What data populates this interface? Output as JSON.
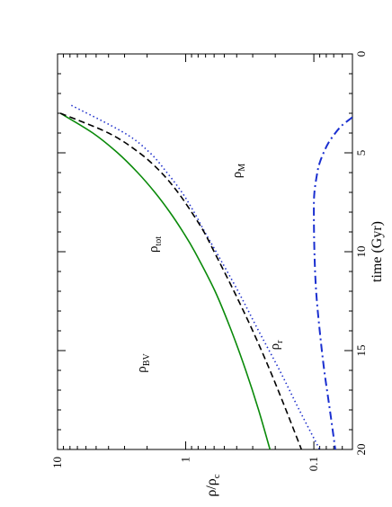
{
  "chart_data": {
    "type": "line",
    "orientation": "rotated-90-ccw",
    "xlabel": "time (Gyr)",
    "ylabel": "ρ/ρ",
    "ylabel_sub": "c",
    "xlim": [
      0,
      20
    ],
    "ylim": [
      0.05,
      10
    ],
    "yscale": "log",
    "grid": false,
    "x_ticks": [
      "0",
      "5",
      "10",
      "15",
      "20"
    ],
    "y_ticks": [
      "0.1",
      "1",
      "10"
    ],
    "series": [
      {
        "name": "ρtot",
        "label_main": "ρ",
        "label_sub": "tot",
        "color": "#0a8a0a",
        "dash": "solid",
        "x": [
          3.0,
          4,
          5,
          6,
          7,
          8,
          9,
          10,
          12,
          14,
          16,
          18,
          20
        ],
        "y": [
          9.5,
          5.3,
          3.4,
          2.37,
          1.74,
          1.33,
          1.05,
          0.85,
          0.59,
          0.44,
          0.34,
          0.27,
          0.22
        ]
      },
      {
        "name": "ρBV",
        "label_main": "ρ",
        "label_sub": "BV",
        "color": "#2233cc",
        "dash": "dotted",
        "x": [
          2.6,
          4,
          5,
          6,
          7,
          8,
          9,
          10,
          12,
          14,
          16,
          18,
          20
        ],
        "y": [
          7.8,
          3.0,
          1.9,
          1.4,
          1.07,
          0.86,
          0.71,
          0.58,
          0.39,
          0.27,
          0.185,
          0.13,
          0.09
        ]
      },
      {
        "name": "ρM",
        "label_main": "ρ",
        "label_sub": "M",
        "color": "#000000",
        "dash": "dashed",
        "x": [
          3.0,
          4,
          5,
          6,
          7,
          8,
          9,
          10,
          12,
          14,
          16,
          18,
          20
        ],
        "y": [
          9.5,
          4.0,
          2.3,
          1.55,
          1.15,
          0.9,
          0.72,
          0.6,
          0.42,
          0.3,
          0.22,
          0.165,
          0.125
        ]
      },
      {
        "name": "ρr",
        "label_main": "ρ",
        "label_sub": "r",
        "color": "#1a2fd0",
        "dash": "dashdot",
        "x": [
          3.2,
          3.6,
          4,
          4.5,
          5,
          5.5,
          6,
          7,
          8,
          10,
          12,
          14,
          16,
          18,
          20
        ],
        "y": [
          0.05,
          0.06,
          0.068,
          0.077,
          0.084,
          0.09,
          0.094,
          0.099,
          0.1,
          0.099,
          0.096,
          0.09,
          0.083,
          0.075,
          0.068
        ]
      }
    ]
  }
}
